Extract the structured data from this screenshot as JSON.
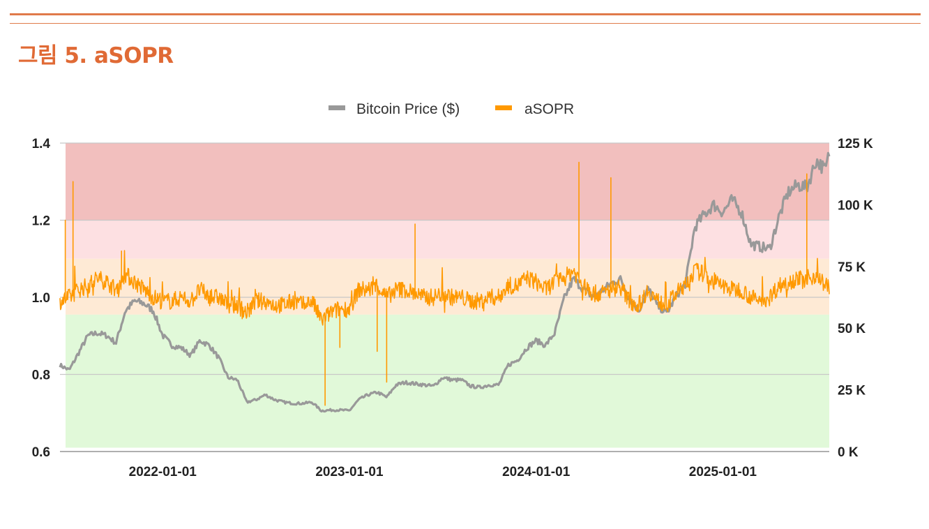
{
  "figure": {
    "title": "그림 5. aSOPR"
  },
  "chart_data": {
    "type": "line",
    "title": "그림 5. aSOPR",
    "legend": {
      "position": "top-center",
      "entries": [
        "Bitcoin Price ($)",
        "aSOPR"
      ]
    },
    "x_tick_labels": [
      "2022-01-01",
      "2023-01-01",
      "2024-01-01",
      "2025-01-01"
    ],
    "x_range": [
      2021.45,
      2025.57
    ],
    "y_left": {
      "label": "aSOPR",
      "ylim": [
        0.6,
        1.4
      ],
      "ticks": [
        "0.6",
        "0.8",
        "1.0",
        "1.2",
        "1.4"
      ]
    },
    "y_right": {
      "label": "Bitcoin Price ($)",
      "ylim": [
        0,
        125000
      ],
      "ticks": [
        "0 K",
        "25 K",
        "50 K",
        "75 K",
        "100 K",
        "125 K"
      ]
    },
    "bands": [
      {
        "from": 1.2,
        "to": 1.4,
        "color": "#f2bfbe"
      },
      {
        "from": 1.1,
        "to": 1.2,
        "color": "#fde0e2"
      },
      {
        "from": 0.955,
        "to": 1.1,
        "color": "#feead5"
      },
      {
        "from": 0.61,
        "to": 0.955,
        "color": "#e1f9d9"
      }
    ],
    "series": [
      {
        "name": "Bitcoin Price ($)",
        "axis": "right",
        "color": "#999999",
        "x": [
          2021.45,
          2021.5,
          2021.55,
          2021.6,
          2021.65,
          2021.7,
          2021.75,
          2021.8,
          2021.85,
          2021.9,
          2021.95,
          2022.0,
          2022.05,
          2022.1,
          2022.15,
          2022.2,
          2022.25,
          2022.3,
          2022.35,
          2022.4,
          2022.45,
          2022.5,
          2022.55,
          2022.6,
          2022.65,
          2022.7,
          2022.75,
          2022.8,
          2022.85,
          2022.9,
          2022.95,
          2023.0,
          2023.05,
          2023.1,
          2023.15,
          2023.2,
          2023.25,
          2023.3,
          2023.35,
          2023.4,
          2023.45,
          2023.5,
          2023.55,
          2023.6,
          2023.65,
          2023.7,
          2023.75,
          2023.8,
          2023.85,
          2023.9,
          2023.95,
          2024.0,
          2024.05,
          2024.1,
          2024.15,
          2024.2,
          2024.25,
          2024.3,
          2024.35,
          2024.4,
          2024.45,
          2024.5,
          2024.55,
          2024.6,
          2024.65,
          2024.7,
          2024.75,
          2024.8,
          2024.85,
          2024.9,
          2024.95,
          2025.0,
          2025.05,
          2025.1,
          2025.15,
          2025.2,
          2025.25,
          2025.3,
          2025.35,
          2025.4,
          2025.45,
          2025.5,
          2025.55,
          2025.57
        ],
        "y": [
          35000,
          33000,
          40000,
          47000,
          48000,
          47000,
          44000,
          57000,
          61000,
          60000,
          57000,
          47000,
          43000,
          42000,
          39000,
          45000,
          43000,
          38000,
          30000,
          29000,
          20000,
          21000,
          23000,
          21000,
          20000,
          19500,
          19500,
          20000,
          16500,
          16800,
          16800,
          16600,
          21000,
          23000,
          24000,
          22000,
          27000,
          28000,
          27500,
          27000,
          26500,
          30000,
          29000,
          29000,
          26500,
          26000,
          27000,
          27000,
          35000,
          37000,
          42000,
          45000,
          43000,
          48000,
          62000,
          70000,
          66000,
          63000,
          65000,
          68000,
          70000,
          62000,
          57000,
          66000,
          59000,
          56000,
          63000,
          68000,
          91000,
          96000,
          100000,
          97000,
          102000,
          97000,
          84000,
          83000,
          82000,
          95000,
          105000,
          108000,
          107000,
          118000,
          114000,
          121000
        ]
      },
      {
        "name": "aSOPR",
        "axis": "left",
        "color": "#ff9900",
        "x": [
          2021.45,
          2021.5,
          2021.55,
          2021.6,
          2021.65,
          2021.7,
          2021.75,
          2021.8,
          2021.85,
          2021.9,
          2021.95,
          2022.0,
          2022.05,
          2022.1,
          2022.15,
          2022.2,
          2022.25,
          2022.3,
          2022.35,
          2022.4,
          2022.45,
          2022.5,
          2022.55,
          2022.6,
          2022.65,
          2022.7,
          2022.75,
          2022.8,
          2022.85,
          2022.9,
          2022.95,
          2023.0,
          2023.05,
          2023.1,
          2023.15,
          2023.2,
          2023.25,
          2023.3,
          2023.35,
          2023.4,
          2023.45,
          2023.5,
          2023.55,
          2023.6,
          2023.65,
          2023.7,
          2023.75,
          2023.8,
          2023.85,
          2023.9,
          2023.95,
          2024.0,
          2024.05,
          2024.1,
          2024.15,
          2024.2,
          2024.25,
          2024.3,
          2024.35,
          2024.4,
          2024.45,
          2024.5,
          2024.55,
          2024.6,
          2024.65,
          2024.7,
          2024.75,
          2024.8,
          2024.85,
          2024.9,
          2024.95,
          2025.0,
          2025.05,
          2025.1,
          2025.15,
          2025.2,
          2025.25,
          2025.3,
          2025.35,
          2025.4,
          2025.45,
          2025.5,
          2025.55,
          2025.57
        ],
        "y": [
          0.99,
          1.0,
          1.02,
          1.03,
          1.05,
          1.04,
          1.02,
          1.06,
          1.04,
          1.02,
          1.0,
          0.99,
          0.99,
          1.0,
          0.99,
          1.02,
          1.0,
          1.0,
          0.98,
          0.98,
          0.96,
          0.99,
          0.99,
          0.98,
          0.98,
          0.99,
          0.98,
          0.99,
          0.94,
          0.96,
          0.97,
          0.97,
          1.02,
          1.02,
          1.03,
          1.0,
          1.02,
          1.02,
          1.01,
          1.0,
          1.0,
          1.01,
          1.0,
          1.0,
          0.99,
          0.99,
          1.0,
          1.0,
          1.03,
          1.03,
          1.05,
          1.04,
          1.02,
          1.04,
          1.05,
          1.07,
          1.03,
          1.01,
          1.01,
          1.02,
          1.03,
          0.99,
          0.98,
          1.02,
          0.99,
          0.98,
          1.01,
          1.03,
          1.07,
          1.06,
          1.04,
          1.03,
          1.02,
          1.02,
          1.0,
          0.99,
          1.0,
          1.03,
          1.04,
          1.05,
          1.04,
          1.06,
          1.03,
          1.03
        ],
        "spikes": [
          {
            "x": 2021.48,
            "y": 1.2
          },
          {
            "x": 2021.52,
            "y": 1.3
          },
          {
            "x": 2021.78,
            "y": 1.12
          },
          {
            "x": 2022.87,
            "y": 0.72
          },
          {
            "x": 2022.95,
            "y": 0.87
          },
          {
            "x": 2023.15,
            "y": 0.86
          },
          {
            "x": 2023.2,
            "y": 0.78
          },
          {
            "x": 2023.35,
            "y": 1.19
          },
          {
            "x": 2024.23,
            "y": 1.35
          },
          {
            "x": 2024.4,
            "y": 1.31
          },
          {
            "x": 2025.45,
            "y": 1.32
          }
        ]
      }
    ]
  }
}
